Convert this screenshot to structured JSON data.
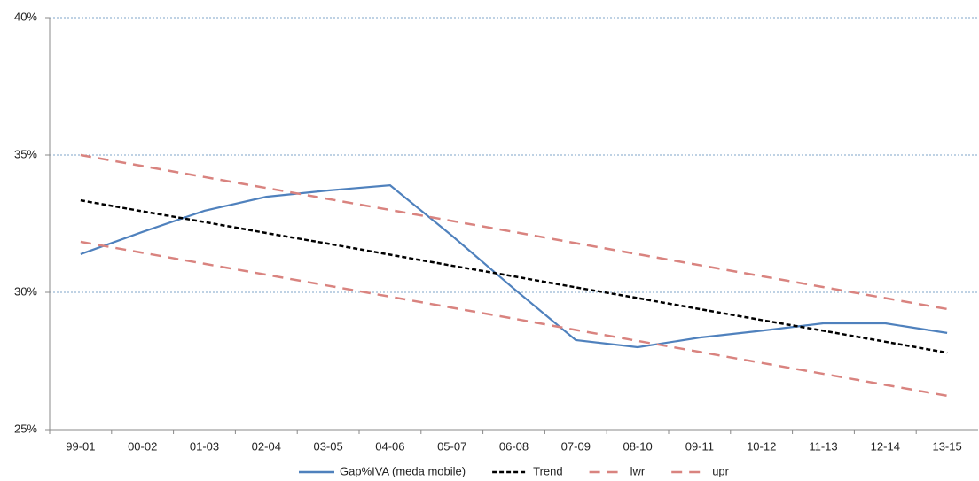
{
  "chart_data": {
    "type": "line",
    "categories": [
      "99-01",
      "00-02",
      "01-03",
      "02-04",
      "03-05",
      "04-06",
      "05-07",
      "06-08",
      "07-09",
      "08-10",
      "09-11",
      "10-12",
      "11-13",
      "12-14",
      "13-15"
    ],
    "series": [
      {
        "name": "Gap%IVA (meda mobile)",
        "color": "#4f81bd",
        "dashed": false,
        "values": [
          31.39,
          32.2,
          32.97,
          33.48,
          33.71,
          33.9,
          32.06,
          30.13,
          28.26,
          28.0,
          28.35,
          28.6,
          28.87,
          28.87,
          28.52
        ]
      },
      {
        "name": "Trend",
        "color": "#000000",
        "dashed": true,
        "values": [
          33.35,
          32.95,
          32.56,
          32.16,
          31.77,
          31.37,
          30.97,
          30.58,
          30.18,
          29.79,
          29.39,
          28.99,
          28.6,
          28.2,
          27.8
        ]
      },
      {
        "name": "lwr",
        "color": "#d9837f",
        "dashed": true,
        "values": [
          31.84,
          31.44,
          31.04,
          30.64,
          30.24,
          29.84,
          29.44,
          29.04,
          28.63,
          28.23,
          27.83,
          27.43,
          27.03,
          26.63,
          26.23
        ]
      },
      {
        "name": "upr",
        "color": "#d9837f",
        "dashed": true,
        "values": [
          35.0,
          34.6,
          34.2,
          33.8,
          33.4,
          33.0,
          32.6,
          32.2,
          31.79,
          31.39,
          30.99,
          30.59,
          30.19,
          29.79,
          29.39
        ]
      }
    ],
    "ylim": [
      25,
      40
    ],
    "yticks": [
      {
        "value": 25,
        "label": "25%"
      },
      {
        "value": 30,
        "label": "30%"
      },
      {
        "value": 35,
        "label": "35%"
      },
      {
        "value": 40,
        "label": "40%"
      }
    ],
    "grid": true,
    "legend": "bottom"
  }
}
